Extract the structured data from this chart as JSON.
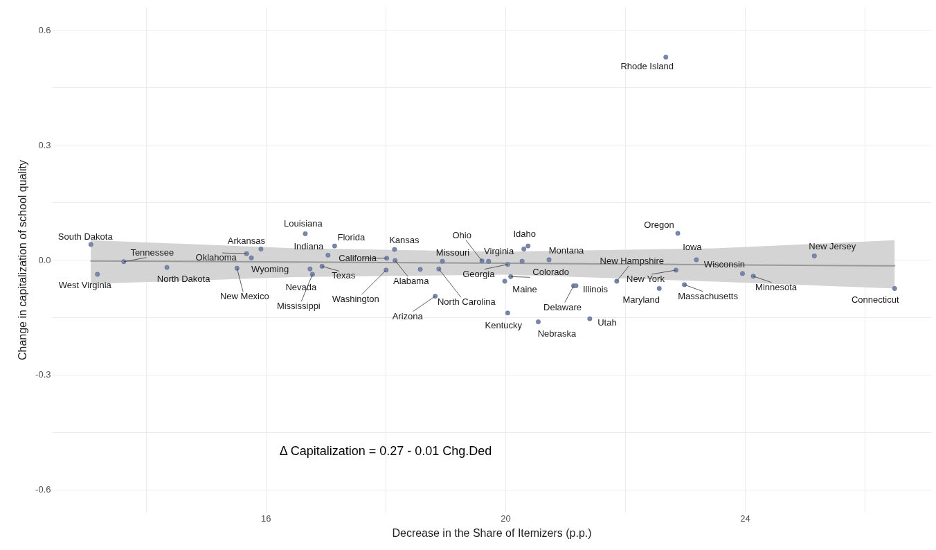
{
  "chart_data": {
    "type": "scatter",
    "xlabel": "Decrease in the Share of Itemizers (p.p.)",
    "ylabel": "Change in capitalization of school quality",
    "annotations": [
      "Δ Capitalization = 0.27 - 0.01 Chg.Ded"
    ],
    "xlim": [
      12.43,
      27.11
    ],
    "ylim": [
      -0.66,
      0.66
    ],
    "xticks": [
      {
        "value": 14,
        "label": null
      },
      16,
      {
        "value": 18,
        "label": null
      },
      20,
      {
        "value": 22,
        "label": null
      },
      24,
      {
        "value": 26,
        "label": null
      }
    ],
    "yticks": [
      -0.6,
      {
        "value": -0.45,
        "label": null
      },
      -0.3,
      {
        "value": -0.15,
        "label": null
      },
      {
        "value": 0,
        "label": "0.0"
      },
      {
        "value": 0.15,
        "label": null
      },
      0.3,
      {
        "value": 0.45,
        "label": null
      },
      0.6
    ],
    "grid": true,
    "series": [
      {
        "color": "#7a87ad",
        "marker": "circle",
        "x": [
          13.08,
          13.19,
          13.63,
          14.35,
          15.52,
          15.68,
          15.76,
          15.92,
          16.66,
          16.74,
          16.78,
          16.94,
          17.04,
          17.15,
          18.01,
          18.02,
          18.15,
          18.16,
          18.58,
          18.83,
          18.89,
          18.95,
          19.61,
          19.72,
          19.99,
          20.04,
          20.04,
          20.09,
          20.28,
          20.31,
          20.38,
          20.55,
          20.73,
          21.14,
          21.18,
          21.41,
          21.86,
          22.57,
          22.68,
          22.85,
          22.88,
          22.99,
          23.19,
          23.96,
          24.14,
          25.16,
          26.5
        ],
        "values": [
          0.04,
          -0.038,
          -0.005,
          -0.02,
          -0.022,
          0.016,
          0.005,
          0.028,
          0.068,
          -0.024,
          -0.038,
          -0.017,
          0.012,
          0.036,
          -0.027,
          0.004,
          0.027,
          -0.002,
          -0.025,
          -0.095,
          -0.024,
          -0.004,
          -0.003,
          -0.004,
          -0.056,
          -0.012,
          -0.139,
          -0.044,
          -0.004,
          0.028,
          0.036,
          -0.162,
          0.0,
          -0.068,
          -0.068,
          -0.154,
          -0.056,
          -0.075,
          0.529,
          -0.027,
          0.069,
          -0.065,
          0.0,
          -0.036,
          -0.043,
          0.01,
          -0.075
        ],
        "value_labels": [
          "South Dakota",
          "West Virginia",
          "Tennessee",
          "North Dakota",
          "New Mexico",
          "Oklahoma",
          "Wyoming",
          "Arkansas",
          "Louisiana",
          "Nevada",
          "Mississippi",
          "Texas",
          "Indiana",
          "Florida",
          "Washington",
          "California",
          "Kansas",
          "Alabama",
          null,
          "Arizona",
          "North Carolina",
          "Missouri",
          "Ohio",
          "Virginia",
          "Maine",
          "Georgia",
          "Kentucky",
          "Colorado",
          null,
          "Idaho",
          null,
          "Nebraska",
          "Montana",
          "Delaware",
          "Illinois",
          "Utah",
          "New Hampshire",
          "Maryland",
          "Rhode Island",
          "New York",
          "Oregon",
          "Massachusetts",
          "Iowa",
          "Wisconsin",
          "Minnesota",
          "New Jersey",
          "Connecticut"
        ]
      },
      {
        "type": "line",
        "color": "#999999",
        "x": [
          13.08,
          16.5,
          20,
          23.5,
          26.5
        ],
        "values": [
          -0.003,
          -0.006,
          -0.009,
          -0.013,
          -0.016
        ],
        "lower": [
          -0.063,
          -0.045,
          -0.039,
          -0.057,
          -0.075
        ],
        "upper": [
          0.051,
          0.03,
          0.021,
          0.03,
          0.051
        ]
      }
    ]
  }
}
